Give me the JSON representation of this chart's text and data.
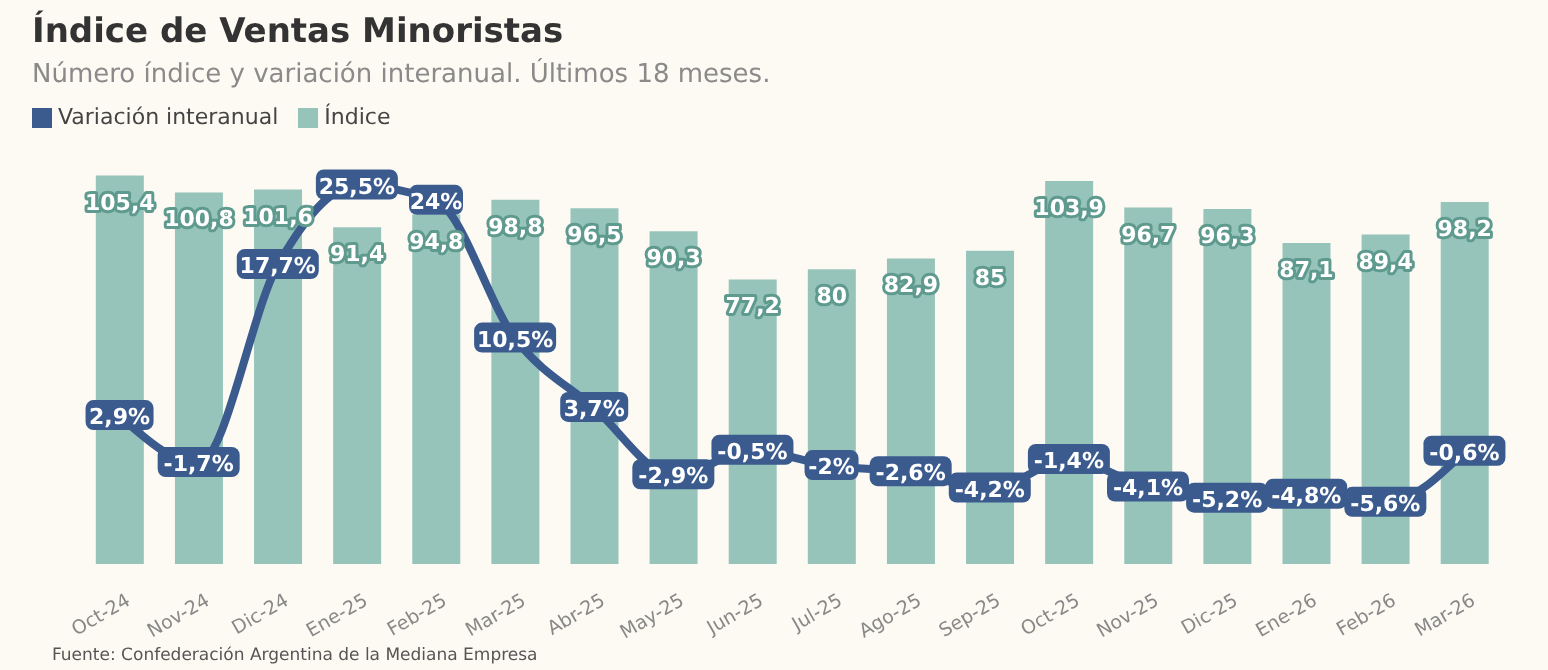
{
  "chart_data": {
    "type": "bar",
    "title": "Índice de Ventas Minoristas",
    "subtitle": "Número índice y variación interanual. Últimos 18 meses.",
    "annotations": [
      "Fuente: Confederación Argentina de la Mediana Empresa"
    ],
    "categories": [
      "Oct-24",
      "Nov-24",
      "Dic-24",
      "Ene-25",
      "Feb-25",
      "Mar-25",
      "Abr-25",
      "May-25",
      "Jun-25",
      "Jul-25",
      "Ago-25",
      "Sep-25",
      "Oct-25",
      "Nov-25",
      "Dic-25",
      "Ene-26",
      "Feb-26",
      "Mar-26"
    ],
    "series": [
      {
        "name": "Variación interanual",
        "type": "line",
        "marker": "square",
        "axis": "y2",
        "color": "#3b5b8e",
        "values": [
          2.9,
          -1.7,
          17.7,
          25.5,
          24,
          10.5,
          3.7,
          -2.9,
          -0.5,
          -2,
          -2.6,
          -4.2,
          -1.4,
          -4.1,
          -5.2,
          -4.8,
          -5.6,
          -0.6
        ],
        "value_labels": [
          "2,9%",
          "-1,7%",
          "17,7%",
          "25,5%",
          "24%",
          "10,5%",
          "3,7%",
          "-2,9%",
          "-0,5%",
          "-2%",
          "-2,6%",
          "-4,2%",
          "-1,4%",
          "-4,1%",
          "-5,2%",
          "-4,8%",
          "-5,6%",
          "-0,6%"
        ]
      },
      {
        "name": "Índice",
        "color": "#96c4ba",
        "values": [
          105.4,
          100.8,
          101.6,
          91.4,
          94.8,
          98.8,
          96.5,
          90.3,
          77.2,
          80,
          82.9,
          85,
          103.9,
          96.7,
          96.3,
          87.1,
          89.4,
          98.2
        ],
        "value_labels": [
          "105,4",
          "100,8",
          "101,6",
          "91,4",
          "94,8",
          "98,8",
          "96,5",
          "90,3",
          "77,2",
          "80",
          "82,9",
          "85",
          "103,9",
          "96,7",
          "96,3",
          "87,1",
          "89,4",
          "98,2"
        ]
      }
    ],
    "tick_labels": "x",
    "legend": "top left",
    "line_style": "solid"
  }
}
